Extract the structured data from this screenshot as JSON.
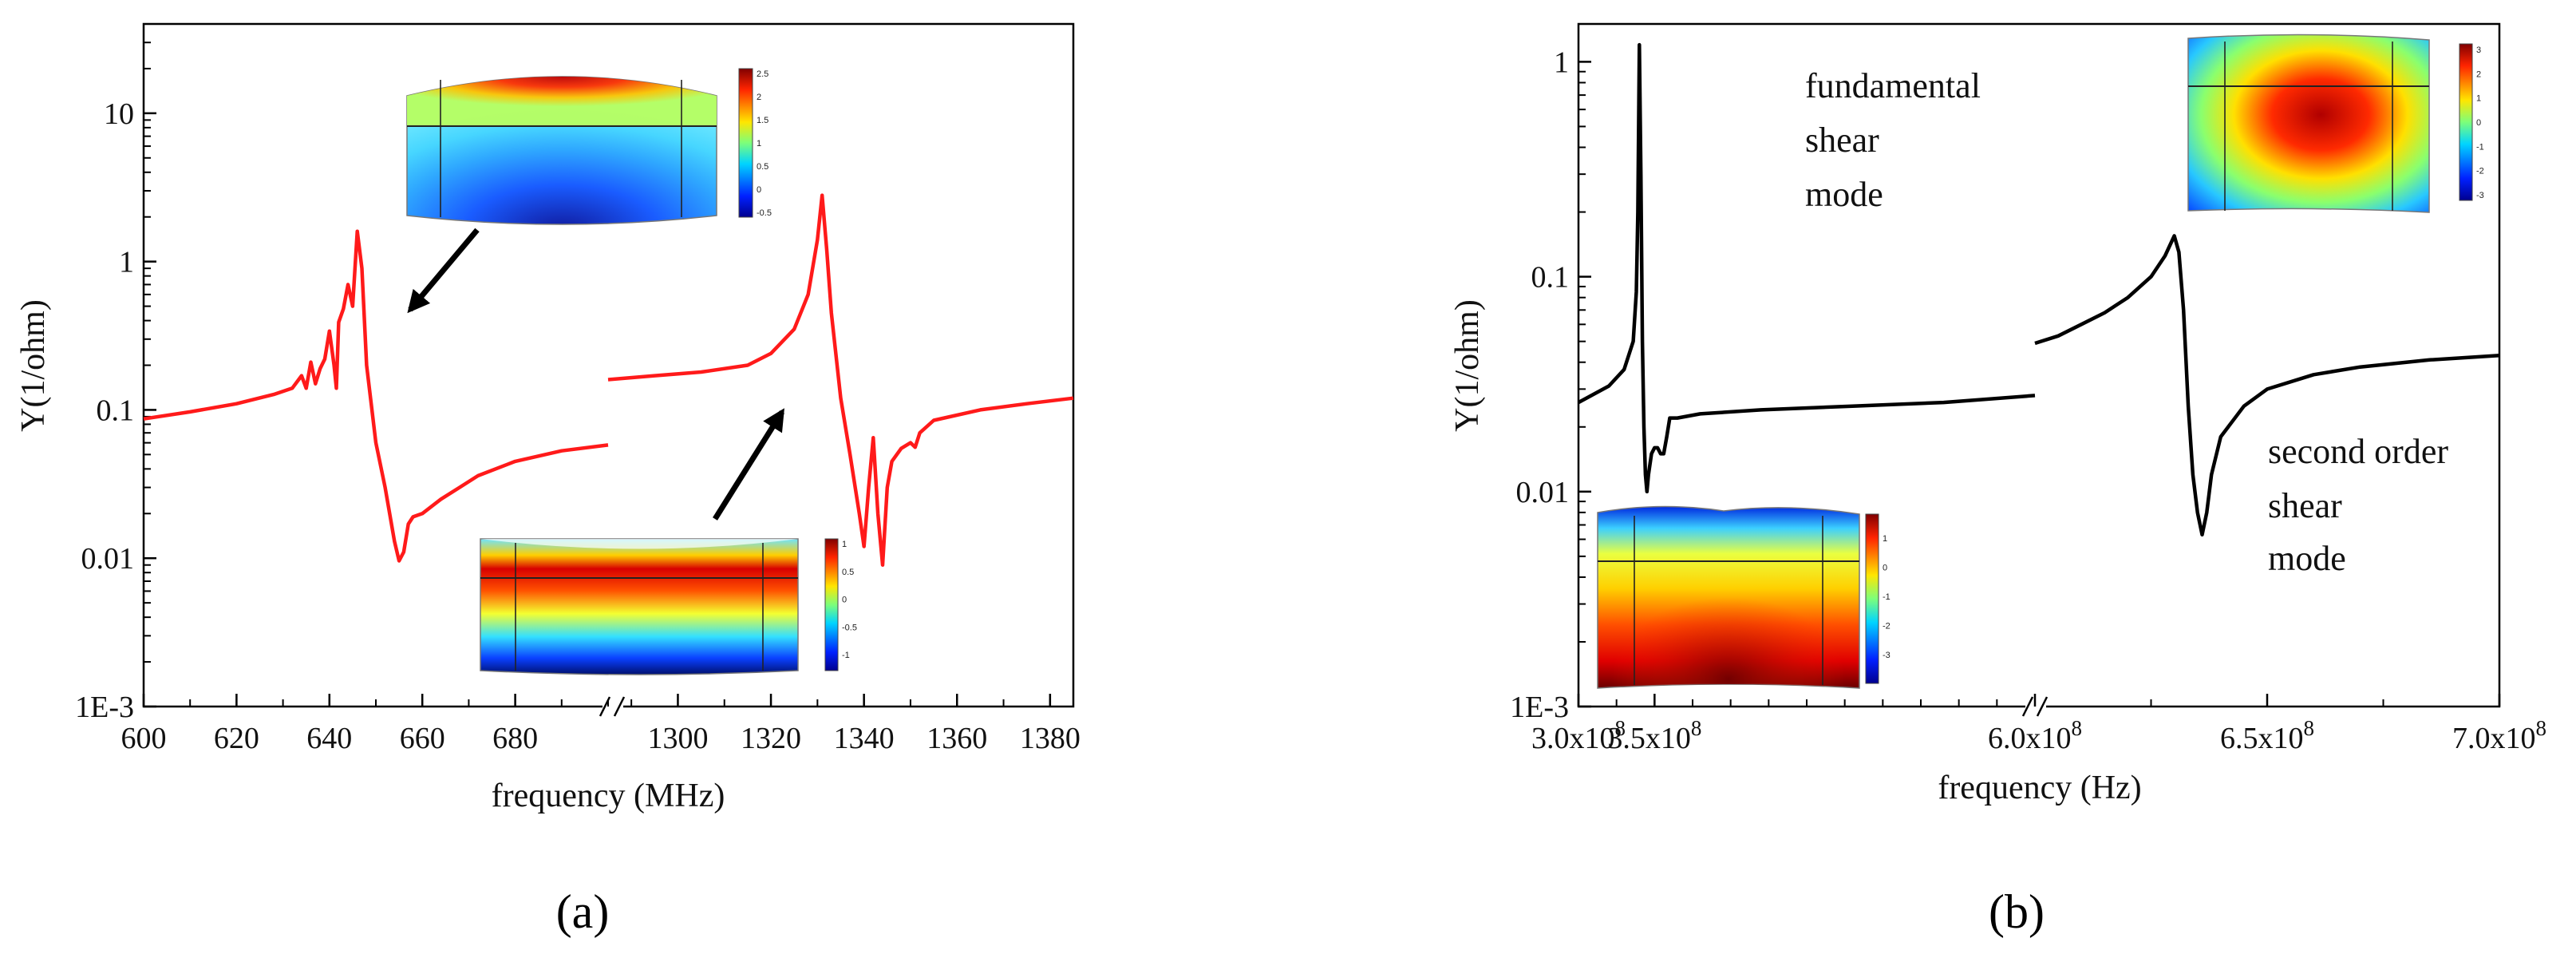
{
  "chart_data": [
    {
      "type": "line",
      "panel_label": "(a)",
      "xlabel": "frequency (MHz)",
      "ylabel": "Y(1/ohm)",
      "yscale": "log",
      "ylim": [
        0.001,
        40
      ],
      "line_color": "#ff1a1a",
      "xaxis_break": true,
      "segments": [
        {
          "xlim": [
            600,
            700
          ],
          "x": [
            600,
            610,
            620,
            628,
            632,
            634,
            635,
            636,
            637,
            638,
            639,
            640,
            641,
            641.5,
            642,
            643,
            644,
            645,
            646,
            647,
            648,
            650,
            652,
            654,
            655,
            656,
            657,
            658,
            660,
            664,
            668,
            672,
            680,
            690,
            700
          ],
          "y": [
            0.087,
            0.097,
            0.11,
            0.127,
            0.14,
            0.17,
            0.14,
            0.21,
            0.15,
            0.19,
            0.22,
            0.34,
            0.2,
            0.14,
            0.39,
            0.48,
            0.7,
            0.5,
            1.6,
            0.9,
            0.2,
            0.06,
            0.03,
            0.013,
            0.0096,
            0.011,
            0.017,
            0.019,
            0.02,
            0.025,
            0.03,
            0.036,
            0.045,
            0.053,
            0.058
          ]
        },
        {
          "xlim": [
            1285,
            1385
          ],
          "x": [
            1285,
            1295,
            1305,
            1315,
            1320,
            1325,
            1328,
            1330,
            1331,
            1332,
            1333,
            1335,
            1337,
            1339,
            1340,
            1341,
            1342,
            1343,
            1344,
            1345,
            1346,
            1348,
            1350,
            1351,
            1352,
            1355,
            1365,
            1375,
            1385
          ],
          "y": [
            0.16,
            0.17,
            0.18,
            0.2,
            0.24,
            0.35,
            0.6,
            1.4,
            2.8,
            1.2,
            0.45,
            0.12,
            0.05,
            0.02,
            0.012,
            0.03,
            0.065,
            0.02,
            0.009,
            0.03,
            0.045,
            0.055,
            0.06,
            0.056,
            0.07,
            0.085,
            0.1,
            0.11,
            0.12
          ]
        }
      ],
      "xticks": [
        {
          "segment": 0,
          "value": 600,
          "label": "600"
        },
        {
          "segment": 0,
          "value": 620,
          "label": "620"
        },
        {
          "segment": 0,
          "value": 640,
          "label": "640"
        },
        {
          "segment": 0,
          "value": 660,
          "label": "660"
        },
        {
          "segment": 0,
          "value": 680,
          "label": "680"
        },
        {
          "segment": 1,
          "value": 1300,
          "label": "1300"
        },
        {
          "segment": 1,
          "value": 1320,
          "label": "1320"
        },
        {
          "segment": 1,
          "value": 1340,
          "label": "1340"
        },
        {
          "segment": 1,
          "value": 1360,
          "label": "1360"
        },
        {
          "segment": 1,
          "value": 1380,
          "label": "1380"
        }
      ],
      "yticks": [
        {
          "value": 0.001,
          "label": "1E-3"
        },
        {
          "value": 0.01,
          "label": "0.01"
        },
        {
          "value": 0.1,
          "label": "0.1"
        },
        {
          "value": 1,
          "label": "1"
        },
        {
          "value": 10,
          "label": "10"
        }
      ],
      "insets": [
        {
          "name": "mode-shape-fundamental",
          "colorbar_ticks": [
            "2.5",
            "2",
            "1.5",
            "1",
            "0.5",
            "0",
            "-0.5"
          ]
        },
        {
          "name": "mode-shape-second",
          "colorbar_ticks": [
            "1",
            "0.5",
            "0",
            "-0.5",
            "-1"
          ]
        }
      ]
    },
    {
      "type": "line",
      "panel_label": "(b)",
      "xlabel": "frequency (Hz)",
      "ylabel": "Y(1/ohm)",
      "yscale": "log",
      "ylim": [
        0.001,
        1.5
      ],
      "line_color": "#000000",
      "xaxis_break": true,
      "segments": [
        {
          "xlim": [
            300000000,
            600000000
          ],
          "x": [
            300000000,
            320000000,
            330000000,
            336000000,
            338000000,
            339000000,
            340000000,
            341000000,
            342000000,
            343000000,
            344000000,
            345000000,
            346000000,
            348000000,
            350000000,
            352000000,
            354000000,
            356000000,
            358000000,
            360000000,
            365000000,
            380000000,
            420000000,
            480000000,
            540000000,
            600000000
          ],
          "y": [
            0.026,
            0.031,
            0.037,
            0.05,
            0.085,
            0.2,
            1.2,
            0.3,
            0.05,
            0.02,
            0.012,
            0.01,
            0.012,
            0.015,
            0.016,
            0.016,
            0.015,
            0.015,
            0.018,
            0.022,
            0.022,
            0.023,
            0.024,
            0.025,
            0.026,
            0.028
          ]
        },
        {
          "xlim": [
            600000000,
            700000000
          ],
          "x": [
            600000000,
            605000000,
            610000000,
            615000000,
            620000000,
            625000000,
            628000000,
            630000000,
            631000000,
            632000000,
            633000000,
            634000000,
            635000000,
            636000000,
            637000000,
            638000000,
            640000000,
            645000000,
            650000000,
            660000000,
            670000000,
            685000000,
            700000000
          ],
          "y": [
            0.049,
            0.053,
            0.06,
            0.068,
            0.08,
            0.1,
            0.125,
            0.155,
            0.13,
            0.07,
            0.025,
            0.012,
            0.008,
            0.0063,
            0.008,
            0.012,
            0.018,
            0.025,
            0.03,
            0.035,
            0.038,
            0.041,
            0.043
          ]
        }
      ],
      "xticks": [
        {
          "segment": 0,
          "value": 300000000,
          "label": "3.0x10",
          "exp": "8"
        },
        {
          "segment": 0,
          "value": 350000000,
          "label": "3.5x10",
          "exp": "8"
        },
        {
          "segment": 0,
          "value": 600000000,
          "label": "6.0x10",
          "exp": "8"
        },
        {
          "segment": 1,
          "value": 650000000,
          "label": "6.5x10",
          "exp": "8"
        },
        {
          "segment": 1,
          "value": 700000000,
          "label": "7.0x10",
          "exp": "8"
        }
      ],
      "yticks": [
        {
          "value": 0.001,
          "label": "1E-3"
        },
        {
          "value": 0.01,
          "label": "0.01"
        },
        {
          "value": 0.1,
          "label": "0.1"
        },
        {
          "value": 1,
          "label": "1"
        }
      ],
      "annotations": [
        {
          "lines": [
            "fundamental",
            "shear",
            "mode"
          ]
        },
        {
          "lines": [
            "second order",
            "shear",
            "mode"
          ]
        }
      ],
      "insets": [
        {
          "name": "mode-shape-fundamental-shear",
          "colorbar_ticks": [
            "3",
            "2",
            "1",
            "0",
            "-1",
            "-2",
            "-3"
          ]
        },
        {
          "name": "mode-shape-second-shear",
          "colorbar_ticks": [
            "1",
            "0",
            "-1",
            "-2",
            "-3"
          ]
        }
      ]
    }
  ]
}
